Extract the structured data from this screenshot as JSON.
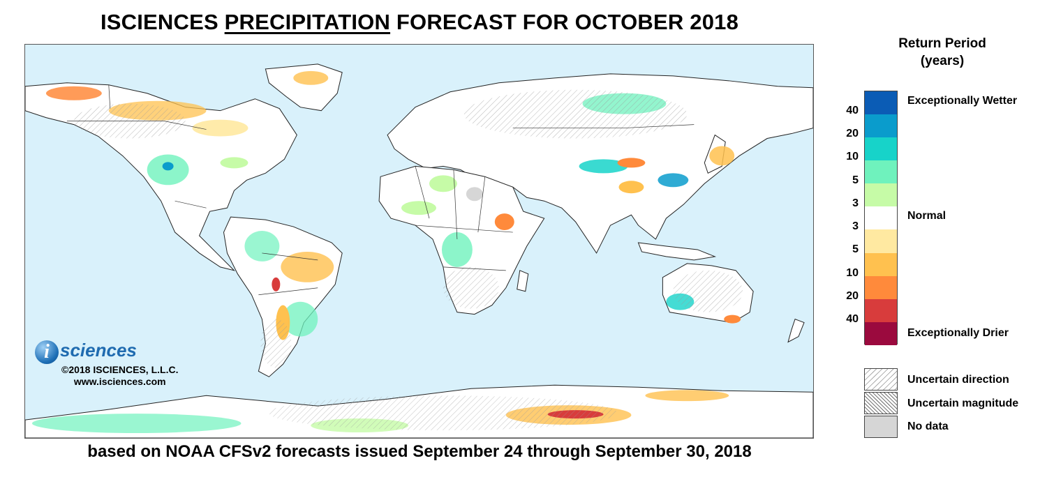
{
  "title": {
    "prefix": "ISCIENCES ",
    "emphasis": "PRECIPITATION",
    "suffix": " FORECAST FOR OCTOBER 2018"
  },
  "subtitle": "based on NOAA CFSv2 forecasts issued September 24 through September 30, 2018",
  "logo": {
    "initial": "i",
    "word": "sciences",
    "copyright": "©2018 ISCIENCES, L.L.C.",
    "url": "www.isciences.com"
  },
  "legend": {
    "title_line1": "Return Period",
    "title_line2": "(years)",
    "colors": [
      "#0b5cb5",
      "#0a9ccc",
      "#17d3c9",
      "#6ff2bd",
      "#c6fba7",
      "#ffffff",
      "#ffe9a1",
      "#ffc14f",
      "#ff8a3b",
      "#d83c3c",
      "#9b0a3e"
    ],
    "ticks": [
      "40",
      "20",
      "10",
      "5",
      "3",
      "3",
      "5",
      "10",
      "20",
      "40"
    ],
    "label_wetter": "Exceptionally Wetter",
    "label_normal": "Normal",
    "label_drier": "Exceptionally Drier",
    "uncertain_direction": "Uncertain direction",
    "uncertain_magnitude": "Uncertain magnitude",
    "no_data": "No data"
  },
  "map_colors": {
    "ocean": "#d9f1fb",
    "land": "#ffffff",
    "nodata": "#d6d6d6",
    "border": "#222222"
  }
}
